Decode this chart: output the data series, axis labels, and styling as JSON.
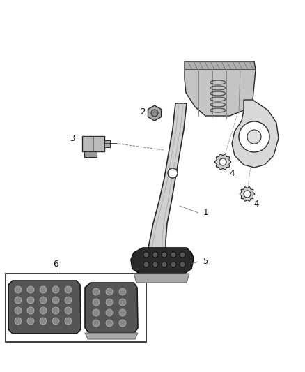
{
  "background_color": "#ffffff",
  "fig_width": 4.38,
  "fig_height": 5.33,
  "dpi": 100,
  "line_color": "#2a2a2a",
  "label_fontsize": 8.5,
  "arm_color": "#c8c8c8",
  "bracket_color": "#d0d0d0",
  "pad_dark": "#3a3a3a",
  "pad_mid": "#888888",
  "pad_light": "#bbbbbb"
}
